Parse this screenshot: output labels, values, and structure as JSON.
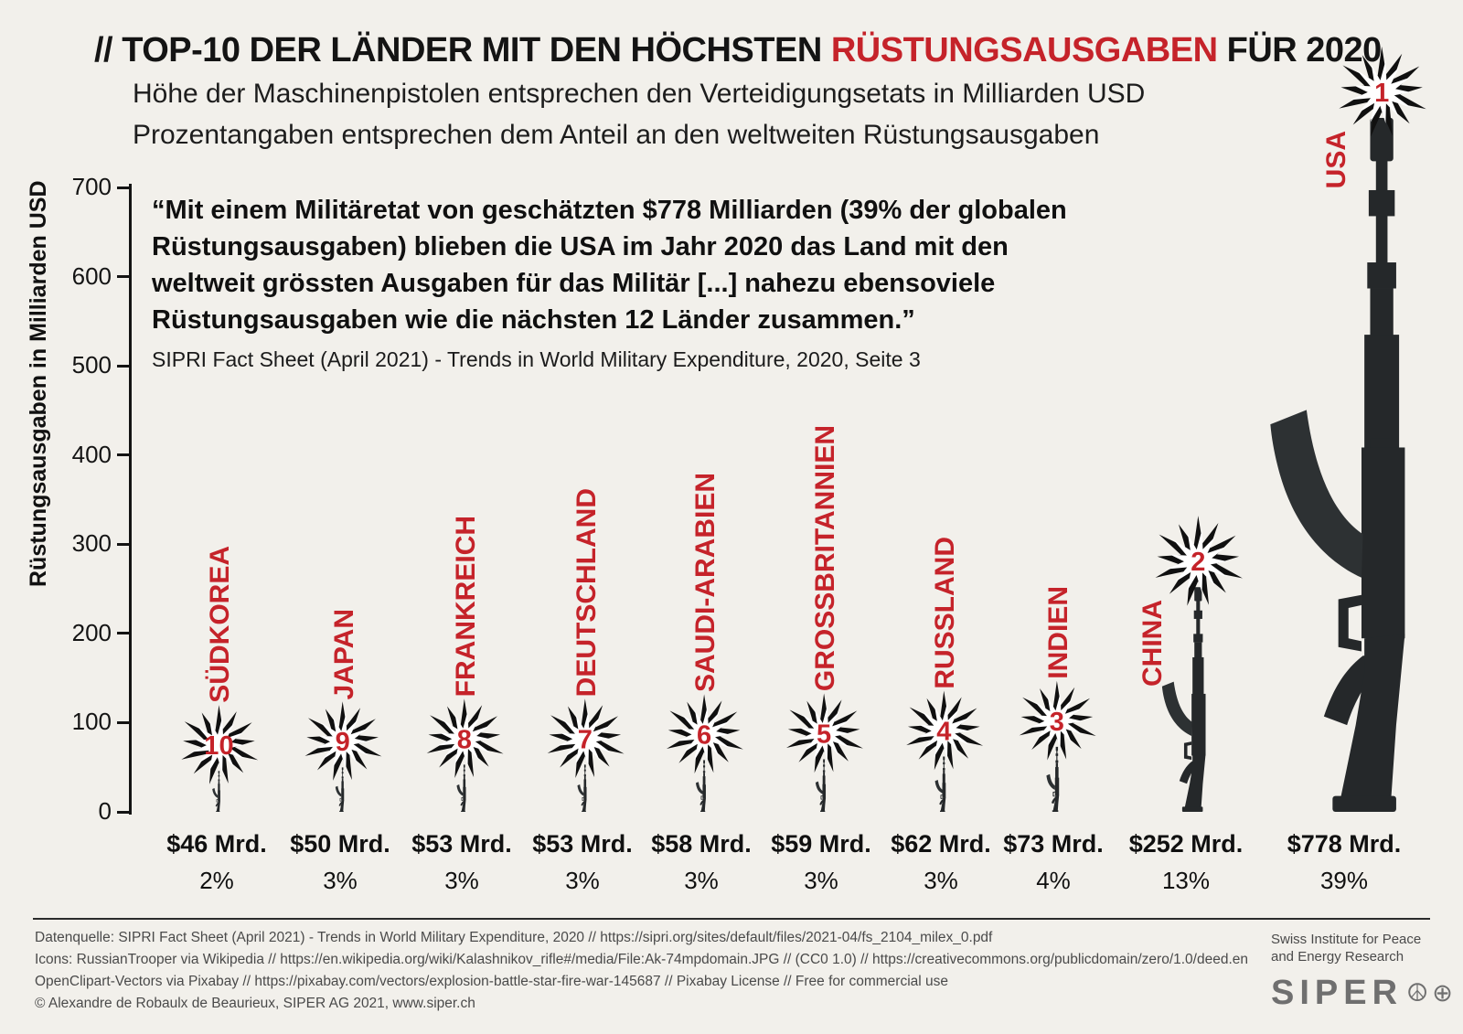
{
  "header": {
    "title_prefix": "//",
    "title_main": "TOP-10 DER LÄNDER MIT DEN HÖCHSTEN",
    "title_highlight": "RÜSTUNGSAUSGABEN",
    "title_suffix": "FÜR 2020",
    "subtitle_line1": "Höhe der Maschinenpistolen entsprechen den Verteidigungsetats in Milliarden USD",
    "subtitle_line2": "Prozentangaben entsprechen dem Anteil an den weltweiten Rüstungsausgaben"
  },
  "quote": {
    "lines": [
      "“Mit einem Militäretat von geschätzten $778 Milliarden (39% der globalen",
      "Rüstungsausgaben) blieben die USA im Jahr 2020 das Land mit den",
      "weltweit grössten Ausgaben für das Militär [...] nahezu ebensoviele",
      "Rüstungsausgaben wie die nächsten 12 Länder zusammen.”"
    ],
    "source": "SIPRI Fact Sheet (April 2021) - Trends in World Military Expenditure, 2020, Seite 3"
  },
  "chart_data": {
    "type": "bar",
    "title": "Top-10 der Länder mit den höchsten Rüstungsausgaben für 2020",
    "ylabel": "Rüstungsausgaben in Milliarden USD",
    "ylim": [
      0,
      700
    ],
    "yticks": [
      0,
      100,
      200,
      300,
      400,
      500,
      600,
      700
    ],
    "unit": "Milliarden USD",
    "grid": false,
    "legend": false,
    "categories": [
      "SÜDKOREA",
      "JAPAN",
      "FRANKREICH",
      "DEUTSCHLAND",
      "SAUDI-ARABIEN",
      "GROSSBRITANNIEN",
      "RUSSLAND",
      "INDIEN",
      "CHINA",
      "USA"
    ],
    "values": [
      46,
      50,
      53,
      53,
      58,
      59,
      62,
      73,
      252,
      778
    ],
    "value_labels": [
      "$46 Mrd.",
      "$50 Mrd.",
      "$53 Mrd.",
      "$53 Mrd.",
      "$58 Mrd.",
      "$59 Mrd.",
      "$62 Mrd.",
      "$73 Mrd.",
      "$252 Mrd.",
      "$778 Mrd."
    ],
    "share_labels": [
      "2%",
      "3%",
      "3%",
      "3%",
      "3%",
      "3%",
      "3%",
      "4%",
      "13%",
      "39%"
    ],
    "ranks": [
      10,
      9,
      8,
      7,
      6,
      5,
      4,
      3,
      2,
      1
    ],
    "bar_icon": "kalashnikov-rifle-icon",
    "badge_icon": "explosion-starburst-icon"
  },
  "footer": {
    "lines": [
      "Datenquelle: SIPRI Fact Sheet (April 2021) - Trends in World Military Expenditure, 2020 // https://sipri.org/sites/default/files/2021-04/fs_2104_milex_0.pdf",
      "Icons: RussianTrooper via Wikipedia // https://en.wikipedia.org/wiki/Kalashnikov_rifle#/media/File:Ak-74mpdomain.JPG // (CC0 1.0) // https://creativecommons.org/publicdomain/zero/1.0/deed.en",
      "OpenClipart-Vectors via Pixabay // https://pixabay.com/vectors/explosion-battle-star-fire-war-145687 // Pixabay License // Free for commercial use",
      "© Alexandre de Robaulx de Beaurieux, SIPER AG 2021, www.siper.ch"
    ],
    "org_line1": "Swiss Institute for Peace",
    "org_line2": "and Energy Research",
    "logo_text": "SIPER",
    "peace_symbol": "☮",
    "globe_symbol": "⊕"
  },
  "colors": {
    "accent_red": "#c5232a",
    "rifle": "#25282a",
    "rifle_mag": "#2d3133",
    "badge_outline": "#101010",
    "badge_fill": "#ffffff",
    "text": "#141414",
    "footer_text": "#4a4a4a",
    "background": "#f2f0eb"
  }
}
